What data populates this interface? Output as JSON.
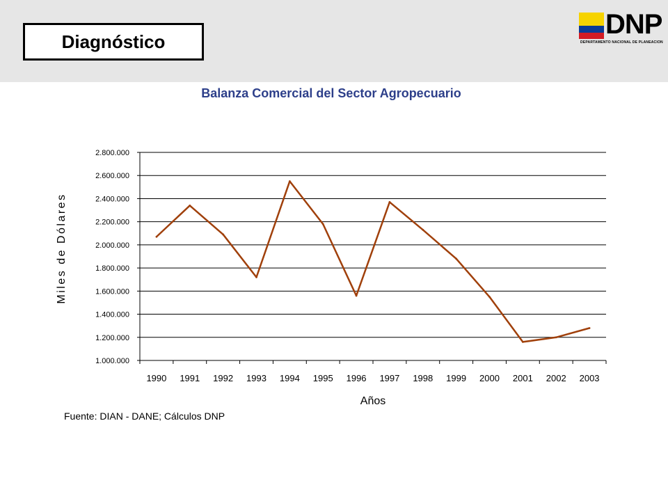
{
  "header": {
    "section_label": "Diagnóstico",
    "logo": {
      "text": "DNP",
      "subtitle": "DEPARTAMENTO NACIONAL DE PLANEACION",
      "flag_colors": [
        "#f6d300",
        "#0a3b95",
        "#d21b24"
      ]
    }
  },
  "source_note": "Fuente: DIAN - DANE; Cálculos DNP",
  "colors": {
    "line": "#a0400b",
    "title": "#2d3f8a",
    "header_band": "#e6e6e6"
  },
  "chart_data": {
    "type": "line",
    "title": "Balanza Comercial del Sector Agropecuario",
    "xlabel": "Años",
    "ylabel": "Miles de Dólares",
    "categories": [
      "1990",
      "1991",
      "1992",
      "1993",
      "1994",
      "1995",
      "1996",
      "1997",
      "1998",
      "1999",
      "2000",
      "2001",
      "2002",
      "2003"
    ],
    "series": [
      {
        "values": [
          2070000,
          2340000,
          2090000,
          1720000,
          2550000,
          2180000,
          1560000,
          2370000,
          2130000,
          1880000,
          1550000,
          1160000,
          1200000,
          1280000
        ]
      }
    ],
    "ylim": [
      1000000,
      2800000
    ],
    "yticks": [
      1000000,
      1200000,
      1400000,
      1600000,
      1800000,
      2000000,
      2200000,
      2400000,
      2600000,
      2800000
    ],
    "ytick_labels": [
      "1.000.000",
      "1.200.000",
      "1.400.000",
      "1.600.000",
      "1.800.000",
      "2.000.000",
      "2.200.000",
      "2.400.000",
      "2.600.000",
      "2.800.000"
    ],
    "grid": "horizontal",
    "legend": "none"
  }
}
